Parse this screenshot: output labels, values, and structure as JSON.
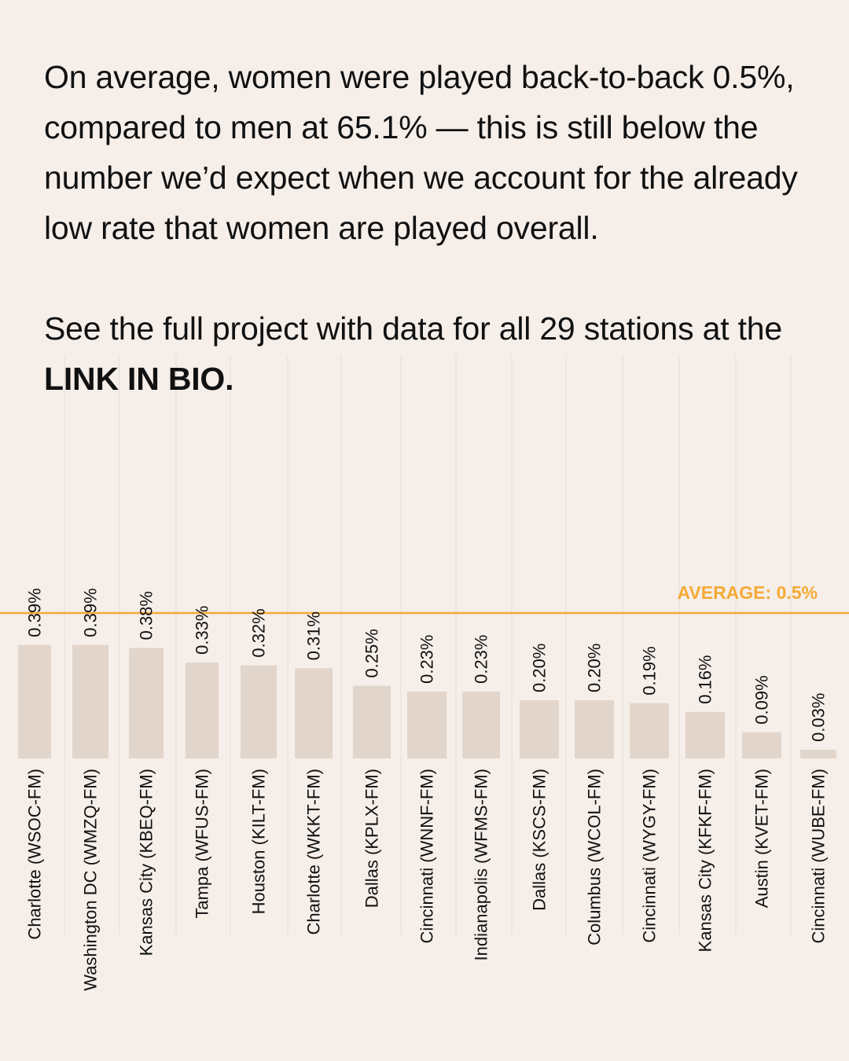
{
  "intro": {
    "text": "On average, women were played back-to-back 0.5%, compared to men at 65.1% — this is still below the number we’d expect when we account for the already low rate that women are played overall."
  },
  "cta": {
    "text_before": "See the full project with data for all 29 stations at the ",
    "link_text": "LINK IN BIO."
  },
  "colors": {
    "background": "#f5eee9",
    "bar": "#e2d5cb",
    "average_line": "#f5aa34",
    "gridline": "#e4dcd6",
    "text": "#111111"
  },
  "chart_data": {
    "type": "bar",
    "categories": [
      "Charlotte (WSOC-FM)",
      "Washington DC (WMZQ-FM)",
      "Kansas City (KBEQ-FM)",
      "Tampa (WFUS-FM)",
      "Houston (KILT-FM)",
      "Charlotte (WKKT-FM)",
      "Dallas (KPLX-FM)",
      "Cincinnati (WNNF-FM)",
      "Indianapolis (WFMS-FM)",
      "Dallas (KSCS-FM)",
      "Columbus (WCOL-FM)",
      "Cincinnati (WYGY-FM)",
      "Kansas City (KFKF-FM)",
      "Austin (KVET-FM)",
      "Cincinnati (WUBE-FM)"
    ],
    "values": [
      0.39,
      0.39,
      0.38,
      0.33,
      0.32,
      0.31,
      0.25,
      0.23,
      0.23,
      0.2,
      0.2,
      0.19,
      0.16,
      0.09,
      0.03
    ],
    "value_labels": [
      "0.39%",
      "0.39%",
      "0.38%",
      "0.33%",
      "0.32%",
      "0.31%",
      "0.25%",
      "0.23%",
      "0.23%",
      "0.20%",
      "0.20%",
      "0.19%",
      "0.16%",
      "0.09%",
      "0.03%"
    ],
    "average": {
      "value": 0.5,
      "label": "AVERAGE: 0.5%"
    },
    "ylim": [
      0,
      0.5
    ],
    "grid": "vertical"
  }
}
